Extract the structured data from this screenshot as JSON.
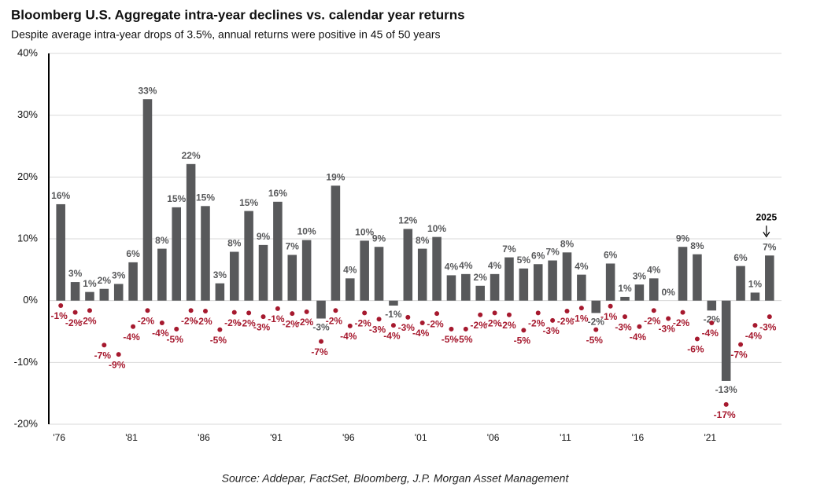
{
  "chart_data": {
    "type": "bar-dot",
    "title": "Bloomberg U.S. Aggregate intra-year declines vs. calendar year returns",
    "subtitle": "Despite average intra-year drops of 3.5%, annual returns were positive in 45 of 50 years",
    "source": "Source: Addepar, FactSet, Bloomberg, J.P. Morgan Asset Management",
    "annotation": "2025",
    "categories": [
      "'76",
      null,
      null,
      null,
      null,
      "'81",
      null,
      null,
      null,
      null,
      "'86",
      null,
      null,
      null,
      null,
      "'91",
      null,
      null,
      null,
      null,
      "'96",
      null,
      null,
      null,
      null,
      "'01",
      null,
      null,
      null,
      null,
      "'06",
      null,
      null,
      null,
      null,
      "'11",
      null,
      null,
      null,
      null,
      "'16",
      null,
      null,
      null,
      null,
      "'21",
      null,
      null,
      null,
      null
    ],
    "series": [
      {
        "color": "#58595b",
        "mark": "bar",
        "values": [
          15.6,
          3.0,
          1.4,
          1.9,
          2.7,
          6.2,
          32.6,
          8.4,
          15.1,
          22.1,
          15.3,
          2.8,
          7.9,
          14.5,
          9.0,
          16.0,
          7.4,
          9.8,
          -2.9,
          18.6,
          3.6,
          9.7,
          8.7,
          -0.8,
          11.6,
          8.4,
          10.3,
          4.1,
          4.3,
          2.4,
          4.3,
          7.0,
          5.2,
          5.9,
          6.5,
          7.8,
          4.2,
          -2.0,
          6.0,
          0.6,
          2.6,
          3.6,
          0.0,
          8.7,
          7.5,
          -1.6,
          -13.0,
          5.6,
          1.3,
          7.3
        ],
        "value_labels": [
          "16%",
          "3%",
          "1%",
          "2%",
          "3%",
          "6%",
          "33%",
          "8%",
          "15%",
          "22%",
          "15%",
          "3%",
          "8%",
          "15%",
          "9%",
          "16%",
          "7%",
          "10%",
          "-3%",
          "19%",
          "4%",
          "10%",
          "9%",
          "-1%",
          "12%",
          "8%",
          "10%",
          "4%",
          "4%",
          "2%",
          "4%",
          "7%",
          "5%",
          "6%",
          "7%",
          "8%",
          "4%",
          "-2%",
          "6%",
          "1%",
          "3%",
          "4%",
          "0%",
          "9%",
          "8%",
          "-2%",
          "-13%",
          "6%",
          "1%",
          "7%"
        ]
      },
      {
        "color": "#a6192e",
        "mark": "dot",
        "values": [
          -0.8,
          -1.9,
          -1.6,
          -7.2,
          -8.7,
          -4.2,
          -1.6,
          -3.6,
          -4.6,
          -1.6,
          -1.7,
          -4.7,
          -1.9,
          -2.0,
          -2.6,
          -1.3,
          -2.1,
          -1.8,
          -6.6,
          -1.6,
          -4.1,
          -2.0,
          -3.0,
          -4.0,
          -2.7,
          -3.6,
          -2.1,
          -4.6,
          -4.6,
          -2.3,
          -2.0,
          -2.3,
          -4.8,
          -2.0,
          -3.2,
          -1.7,
          -1.2,
          -4.7,
          -0.9,
          -2.6,
          -4.2,
          -1.6,
          -2.9,
          -1.9,
          -6.2,
          -3.6,
          -16.8,
          -7.1,
          -4.0,
          -2.6
        ],
        "value_labels": [
          "-1%",
          "-2%",
          "-2%",
          "-7%",
          "-9%",
          "-4%",
          "-2%",
          "-4%",
          "-5%",
          "-2%",
          "-2%",
          "-5%",
          "-2%",
          "-2%",
          "-3%",
          "-1%",
          "-2%",
          "-2%",
          "-7%",
          "-2%",
          "-4%",
          "-2%",
          "-3%",
          "-4%",
          "-3%",
          "-4%",
          "-2%",
          "-5%",
          "-5%",
          "-2%",
          "-2%",
          "-2%",
          "-5%",
          "-2%",
          "-3%",
          "-2%",
          "-1%",
          "-5%",
          "-1%",
          "-3%",
          "-4%",
          "-2%",
          "-3%",
          "-2%",
          "-6%",
          "-4%",
          "-17%",
          "-7%",
          "-4%",
          "-3%"
        ]
      }
    ],
    "ylim": [
      -20,
      40
    ],
    "yticks": [
      {
        "value": -20,
        "label": "-20%"
      },
      {
        "value": -10,
        "label": "-10%"
      },
      {
        "value": 0,
        "label": "0%"
      },
      {
        "value": 10,
        "label": "10%"
      },
      {
        "value": 20,
        "label": "20%"
      },
      {
        "value": 30,
        "label": "30%"
      },
      {
        "value": 40,
        "label": "40%"
      }
    ],
    "grid": true
  }
}
